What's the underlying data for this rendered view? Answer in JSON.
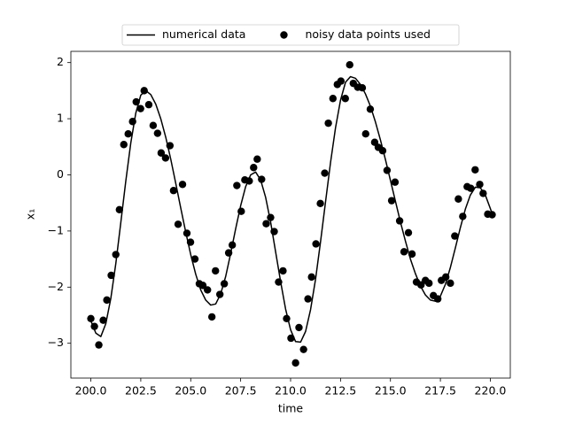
{
  "chart_data": {
    "type": "line",
    "xlabel": "time",
    "ylabel": "x₁",
    "xlim": [
      199,
      221
    ],
    "ylim": [
      -3.62,
      2.2
    ],
    "xticks": [
      {
        "value": 200,
        "label": "200.0"
      },
      {
        "value": 202.5,
        "label": "202.5"
      },
      {
        "value": 205,
        "label": "205.0"
      },
      {
        "value": 207.5,
        "label": "207.5"
      },
      {
        "value": 210,
        "label": "210.0"
      },
      {
        "value": 212.5,
        "label": "212.5"
      },
      {
        "value": 215,
        "label": "215.0"
      },
      {
        "value": 217.5,
        "label": "217.5"
      },
      {
        "value": 220,
        "label": "220.0"
      }
    ],
    "yticks": [
      {
        "value": -3,
        "label": "−3"
      },
      {
        "value": -2,
        "label": "−2"
      },
      {
        "value": -1,
        "label": "−1"
      },
      0,
      1,
      2
    ],
    "legend": "upper center",
    "series": [
      {
        "name": "numerical data",
        "type": "line",
        "color": "#000000",
        "x": [
          200,
          200.25,
          200.5,
          200.75,
          201,
          201.25,
          201.5,
          201.75,
          202,
          202.25,
          202.5,
          202.75,
          203,
          203.25,
          203.5,
          203.75,
          204,
          204.25,
          204.5,
          204.75,
          205,
          205.25,
          205.5,
          205.75,
          206,
          206.25,
          206.5,
          206.75,
          207,
          207.25,
          207.5,
          207.75,
          208,
          208.25,
          208.5,
          208.75,
          209,
          209.25,
          209.5,
          209.75,
          210,
          210.25,
          210.5,
          210.75,
          211,
          211.25,
          211.5,
          211.75,
          212,
          212.25,
          212.5,
          212.75,
          213,
          213.25,
          213.5,
          213.75,
          214,
          214.25,
          214.5,
          214.75,
          215,
          215.25,
          215.5,
          215.75,
          216,
          216.25,
          216.5,
          216.75,
          217,
          217.25,
          217.5,
          217.75,
          218,
          218.25,
          218.5,
          218.75,
          219,
          219.25,
          219.5,
          219.75,
          220,
          220.1
        ],
        "values": [
          -2.6,
          -2.82,
          -2.88,
          -2.65,
          -2.2,
          -1.58,
          -0.85,
          -0.11,
          0.57,
          1.1,
          1.42,
          1.5,
          1.43,
          1.26,
          1.0,
          0.67,
          0.28,
          -0.15,
          -0.59,
          -1.02,
          -1.42,
          -1.77,
          -2.05,
          -2.23,
          -2.32,
          -2.3,
          -2.12,
          -1.81,
          -1.4,
          -0.96,
          -0.55,
          -0.21,
          0.0,
          0.05,
          -0.09,
          -0.4,
          -0.84,
          -1.37,
          -1.9,
          -2.39,
          -2.76,
          -2.97,
          -2.98,
          -2.79,
          -2.4,
          -1.86,
          -1.19,
          -0.48,
          0.22,
          0.84,
          1.33,
          1.65,
          1.75,
          1.72,
          1.61,
          1.44,
          1.22,
          0.94,
          0.62,
          0.27,
          -0.1,
          -0.47,
          -0.84,
          -1.18,
          -1.5,
          -1.76,
          -1.98,
          -2.14,
          -2.23,
          -2.25,
          -2.16,
          -1.95,
          -1.65,
          -1.3,
          -0.94,
          -0.61,
          -0.36,
          -0.22,
          -0.23,
          -0.36,
          -0.6,
          -0.7
        ]
      },
      {
        "name": "noisy data points used",
        "type": "scatter",
        "color": "#000000",
        "x": [
          200.0,
          200.18,
          200.4,
          200.62,
          200.8,
          201.02,
          201.25,
          201.43,
          201.65,
          201.87,
          202.09,
          202.27,
          202.49,
          202.67,
          202.9,
          203.12,
          203.34,
          203.52,
          203.74,
          203.96,
          204.14,
          204.37,
          204.59,
          204.81,
          204.99,
          205.21,
          205.43,
          205.61,
          205.84,
          206.06,
          206.24,
          206.46,
          206.68,
          206.9,
          207.08,
          207.31,
          207.53,
          207.71,
          207.93,
          208.15,
          208.33,
          208.55,
          208.78,
          209.0,
          209.18,
          209.4,
          209.62,
          209.8,
          210.02,
          210.25,
          210.42,
          210.65,
          210.87,
          211.05,
          211.27,
          211.49,
          211.71,
          211.89,
          212.12,
          212.34,
          212.52,
          212.74,
          212.96,
          213.14,
          213.36,
          213.59,
          213.76,
          213.99,
          214.21,
          214.39,
          214.61,
          214.83,
          215.06,
          215.23,
          215.46,
          215.68,
          215.9,
          216.08,
          216.3,
          216.53,
          216.75,
          216.93,
          217.15,
          217.37,
          217.55,
          217.77,
          218.0,
          218.22,
          218.4,
          218.62,
          218.84,
          219.02,
          219.24,
          219.47,
          219.64,
          219.87,
          220.09
        ],
        "values": [
          -2.56,
          -2.7,
          -3.03,
          -2.59,
          -2.23,
          -1.79,
          -1.42,
          -0.62,
          0.54,
          0.73,
          0.95,
          1.3,
          1.18,
          1.5,
          1.25,
          0.88,
          0.74,
          0.39,
          0.3,
          0.52,
          -0.28,
          -0.88,
          -0.17,
          -1.04,
          -1.2,
          -1.5,
          -1.94,
          -1.97,
          -2.05,
          -2.53,
          -1.71,
          -2.13,
          -1.94,
          -1.39,
          -1.25,
          -0.19,
          -0.65,
          -0.09,
          -0.11,
          0.13,
          0.28,
          -0.08,
          -0.87,
          -0.76,
          -1.01,
          -1.91,
          -1.71,
          -2.56,
          -2.91,
          -3.35,
          -2.72,
          -3.11,
          -2.21,
          -1.82,
          -1.23,
          -0.51,
          0.03,
          0.92,
          1.36,
          1.61,
          1.67,
          1.36,
          1.96,
          1.63,
          1.56,
          1.55,
          0.73,
          1.17,
          0.58,
          0.49,
          0.43,
          0.08,
          -0.46,
          -0.13,
          -0.82,
          -1.37,
          -1.03,
          -1.41,
          -1.91,
          -1.96,
          -1.88,
          -1.93,
          -2.15,
          -2.21,
          -1.88,
          -1.82,
          -1.93,
          -1.09,
          -0.43,
          -0.74,
          -0.21,
          -0.24,
          0.09,
          -0.17,
          -0.33,
          -0.7,
          -0.71
        ]
      }
    ]
  }
}
